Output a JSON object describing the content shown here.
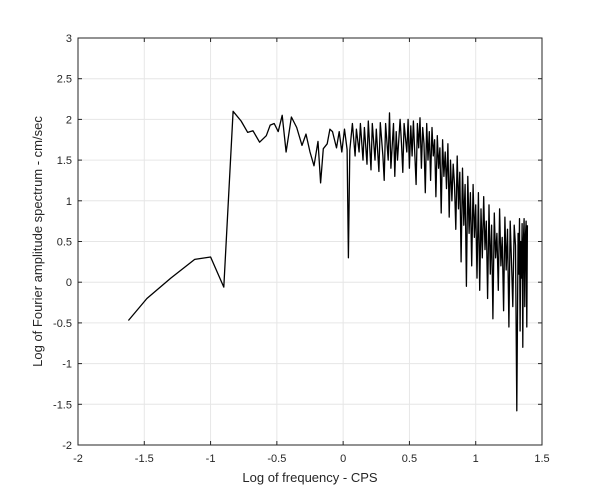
{
  "chart_data": {
    "type": "line",
    "title": "",
    "xlabel": "Log of frequency - CPS",
    "ylabel": "Log of Fourier amplitude spectrum - cm/sec",
    "xlim": [
      -2,
      1.5
    ],
    "ylim": [
      -2,
      3
    ],
    "xticks": [
      -2,
      -1.5,
      -1,
      -0.5,
      0,
      0.5,
      1,
      1.5
    ],
    "xtick_labels": [
      "-2",
      "-1.5",
      "-1",
      "-0.5",
      "0",
      "0.5",
      "1",
      "1.5"
    ],
    "yticks": [
      -2,
      -1.5,
      -1,
      -0.5,
      0,
      0.5,
      1,
      1.5,
      2,
      2.5,
      3
    ],
    "ytick_labels": [
      "-2",
      "-1.5",
      "-1",
      "-0.5",
      "0",
      "0.5",
      "1",
      "1.5",
      "2",
      "2.5",
      "3"
    ],
    "grid": true,
    "line_color": "#000000",
    "grid_color": "#e6e6e6",
    "axis_color": "#262626",
    "series": [
      {
        "x": [
          -1.62,
          -1.48,
          -1.3,
          -1.12,
          -1.0,
          -0.9,
          -0.83,
          -0.77,
          -0.72,
          -0.68,
          -0.63,
          -0.58,
          -0.55,
          -0.52,
          -0.49,
          -0.46,
          -0.43,
          -0.39,
          -0.35,
          -0.31,
          -0.28,
          -0.25,
          -0.22,
          -0.19,
          -0.17,
          -0.15,
          -0.12,
          -0.1,
          -0.08,
          -0.05,
          -0.03,
          -0.01,
          0.01,
          0.03,
          0.04,
          0.05,
          0.07,
          0.09,
          0.1,
          0.12,
          0.13,
          0.15,
          0.16,
          0.18,
          0.19,
          0.21,
          0.22,
          0.24,
          0.25,
          0.27,
          0.28,
          0.3,
          0.31,
          0.32,
          0.34,
          0.35,
          0.36,
          0.38,
          0.39,
          0.4,
          0.41,
          0.43,
          0.44,
          0.45,
          0.46,
          0.48,
          0.49,
          0.5,
          0.51,
          0.52,
          0.53,
          0.55,
          0.56,
          0.57,
          0.58,
          0.59,
          0.6,
          0.61,
          0.62,
          0.63,
          0.64,
          0.65,
          0.66,
          0.67,
          0.68,
          0.69,
          0.7,
          0.71,
          0.72,
          0.73,
          0.74,
          0.75,
          0.76,
          0.77,
          0.78,
          0.79,
          0.8,
          0.81,
          0.82,
          0.83,
          0.84,
          0.85,
          0.86,
          0.87,
          0.88,
          0.89,
          0.9,
          0.91,
          0.92,
          0.93,
          0.94,
          0.95,
          0.96,
          0.97,
          0.98,
          0.99,
          1.0,
          1.01,
          1.02,
          1.03,
          1.04,
          1.05,
          1.06,
          1.07,
          1.08,
          1.09,
          1.1,
          1.11,
          1.12,
          1.13,
          1.14,
          1.15,
          1.16,
          1.17,
          1.18,
          1.19,
          1.2,
          1.21,
          1.22,
          1.23,
          1.24,
          1.25,
          1.26,
          1.27,
          1.28,
          1.29,
          1.3,
          1.31,
          1.32,
          1.325,
          1.33,
          1.335,
          1.34,
          1.345,
          1.35,
          1.355,
          1.36,
          1.365,
          1.37,
          1.375,
          1.38,
          1.385,
          1.39
        ],
        "y": [
          -0.47,
          -0.2,
          0.05,
          0.28,
          0.31,
          -0.06,
          2.1,
          1.98,
          1.84,
          1.86,
          1.72,
          1.8,
          1.93,
          1.95,
          1.85,
          2.05,
          1.6,
          2.03,
          1.9,
          1.68,
          1.82,
          1.6,
          1.43,
          1.73,
          1.22,
          1.64,
          1.7,
          1.88,
          1.85,
          1.65,
          1.85,
          1.6,
          1.88,
          1.63,
          0.3,
          1.62,
          1.95,
          1.55,
          1.88,
          1.6,
          1.95,
          1.5,
          1.9,
          1.45,
          1.98,
          1.38,
          1.95,
          1.5,
          1.88,
          1.36,
          1.96,
          1.55,
          1.25,
          1.95,
          1.5,
          2.08,
          1.4,
          1.95,
          1.3,
          1.85,
          1.5,
          2.0,
          1.7,
          1.35,
          1.95,
          1.6,
          2.0,
          1.4,
          1.92,
          1.55,
          1.98,
          1.2,
          1.95,
          1.65,
          2.02,
          1.4,
          1.9,
          1.7,
          1.1,
          1.95,
          1.5,
          1.85,
          1.25,
          1.9,
          1.55,
          1.75,
          1.05,
          1.8,
          1.4,
          1.65,
          0.85,
          1.75,
          1.3,
          1.6,
          1.15,
          1.7,
          0.8,
          1.5,
          1.0,
          1.45,
          1.2,
          0.65,
          1.55,
          0.9,
          1.35,
          0.25,
          1.4,
          0.7,
          1.2,
          -0.05,
          1.3,
          0.6,
          1.1,
          0.2,
          1.2,
          0.55,
          0.95,
          0.05,
          1.1,
          -0.1,
          0.9,
          0.3,
          1.05,
          0.4,
          0.75,
          -0.2,
          0.95,
          0.1,
          0.7,
          -0.45,
          0.85,
          0.3,
          0.6,
          -0.1,
          0.9,
          0.2,
          0.55,
          -0.35,
          0.8,
          0.15,
          0.65,
          -0.55,
          0.75,
          0.25,
          -0.3,
          0.7,
          0.45,
          -1.58,
          0.6,
          0.1,
          0.78,
          -0.6,
          0.5,
          0.05,
          0.72,
          -0.8,
          0.5,
          0.78,
          -0.3,
          0.55,
          0.75,
          -0.55,
          0.7
        ]
      }
    ]
  }
}
